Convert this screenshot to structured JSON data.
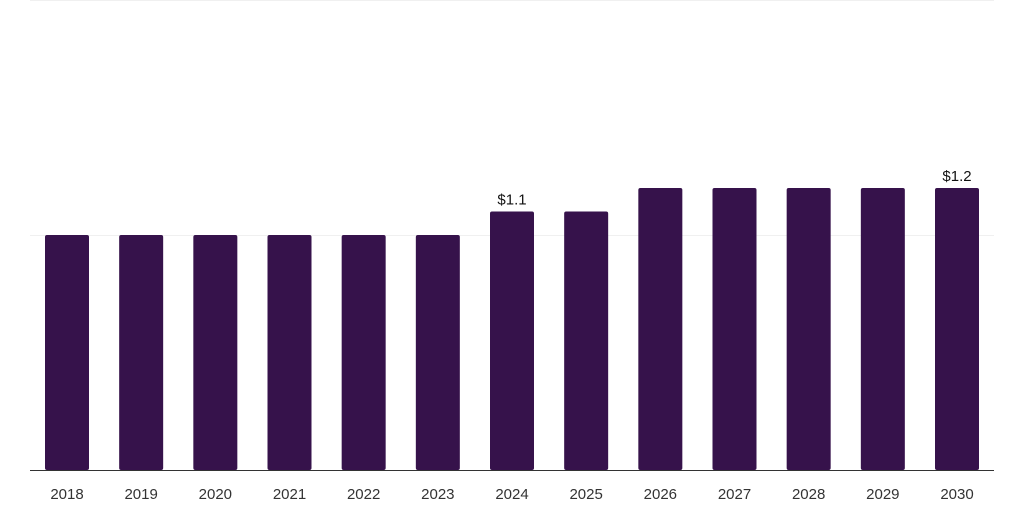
{
  "colors": {
    "bar": "#36124b",
    "grid": "#f0f0f0",
    "axis": "#333333",
    "text": "#333333"
  },
  "chart_data": {
    "type": "bar",
    "title": "",
    "xlabel": "",
    "ylabel": "",
    "categories": [
      "2018",
      "2019",
      "2020",
      "2021",
      "2022",
      "2023",
      "2024",
      "2025",
      "2026",
      "2027",
      "2028",
      "2029",
      "2030"
    ],
    "series": [
      {
        "name": "",
        "values": [
          1.0,
          1.0,
          1.0,
          1.0,
          1.0,
          1.0,
          1.1,
          1.1,
          1.2,
          1.2,
          1.2,
          1.2,
          1.2
        ]
      }
    ],
    "ylim": [
      0,
      2.0
    ],
    "gridlines": [
      1.0,
      2.0
    ],
    "grid": true,
    "legend": "none",
    "data_labels": [
      {
        "category": "2024",
        "text": "$1.1"
      },
      {
        "category": "2030",
        "text": "$1.2"
      }
    ]
  }
}
